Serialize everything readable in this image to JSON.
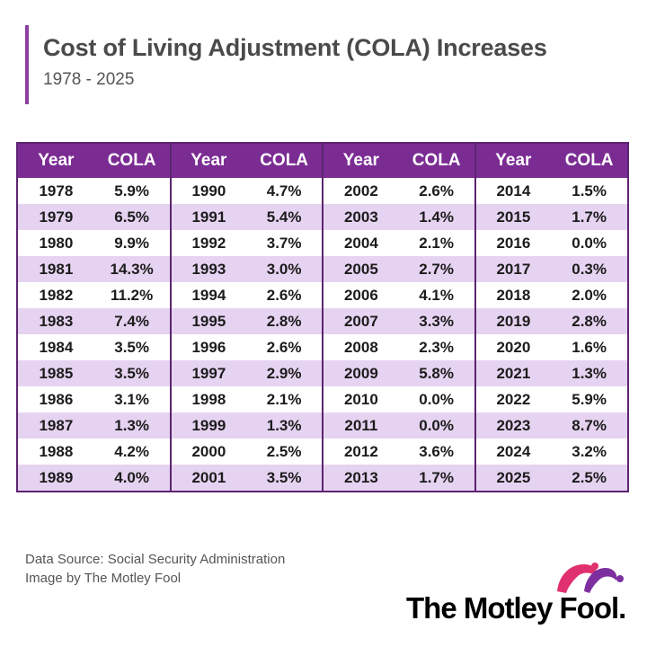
{
  "header": {
    "title": "Cost of Living Adjustment (COLA) Increases",
    "subtitle": "1978 - 2025"
  },
  "colors": {
    "accent": "#8c3fa0",
    "header_bg": "#7b2c93",
    "stripe": "#e6d3f1",
    "border": "#5c2470",
    "logo_pink": "#e0306e",
    "logo_purple": "#7d2fa0"
  },
  "footer": {
    "source": "Data Source: Social Security Administration",
    "credit": "Image by The Motley Fool",
    "logo_text": "The Motley Fool."
  },
  "chart_data": {
    "type": "table",
    "title": "Cost of Living Adjustment (COLA) Increases",
    "subtitle": "1978 - 2025",
    "columns": [
      "Year",
      "COLA",
      "Year",
      "COLA",
      "Year",
      "COLA",
      "Year",
      "COLA"
    ],
    "rows": [
      [
        "1978",
        "5.9%",
        "1990",
        "4.7%",
        "2002",
        "2.6%",
        "2014",
        "1.5%"
      ],
      [
        "1979",
        "6.5%",
        "1991",
        "5.4%",
        "2003",
        "1.4%",
        "2015",
        "1.7%"
      ],
      [
        "1980",
        "9.9%",
        "1992",
        "3.7%",
        "2004",
        "2.1%",
        "2016",
        "0.0%"
      ],
      [
        "1981",
        "14.3%",
        "1993",
        "3.0%",
        "2005",
        "2.7%",
        "2017",
        "0.3%"
      ],
      [
        "1982",
        "11.2%",
        "1994",
        "2.6%",
        "2006",
        "4.1%",
        "2018",
        "2.0%"
      ],
      [
        "1983",
        "7.4%",
        "1995",
        "2.8%",
        "2007",
        "3.3%",
        "2019",
        "2.8%"
      ],
      [
        "1984",
        "3.5%",
        "1996",
        "2.6%",
        "2008",
        "2.3%",
        "2020",
        "1.6%"
      ],
      [
        "1985",
        "3.5%",
        "1997",
        "2.9%",
        "2009",
        "5.8%",
        "2021",
        "1.3%"
      ],
      [
        "1986",
        "3.1%",
        "1998",
        "2.1%",
        "2010",
        "0.0%",
        "2022",
        "5.9%"
      ],
      [
        "1987",
        "1.3%",
        "1999",
        "1.3%",
        "2011",
        "0.0%",
        "2023",
        "8.7%"
      ],
      [
        "1988",
        "4.2%",
        "2000",
        "2.5%",
        "2012",
        "3.6%",
        "2024",
        "3.2%"
      ],
      [
        "1989",
        "4.0%",
        "2001",
        "3.5%",
        "2013",
        "1.7%",
        "2025",
        "2.5%"
      ]
    ]
  }
}
